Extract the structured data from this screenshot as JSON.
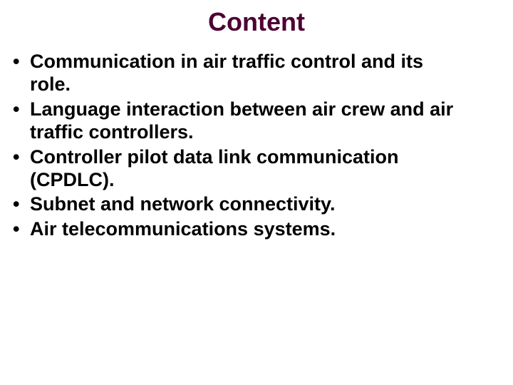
{
  "slide": {
    "title": "Content",
    "title_color": "#4d0033",
    "title_fontsize": 36,
    "body_fontsize": 27,
    "body_color": "#000000",
    "background_color": "#ffffff",
    "items": [
      {
        "line1": "Communication in air traffic control and its",
        "line2": "role."
      },
      {
        "line1": "Language interaction between air crew and air",
        "line2": "traffic controllers."
      },
      {
        "line1": "Controller pilot data link communication",
        "line2": "(CPDLC)."
      },
      {
        "line1": "Subnet and network connectivity.",
        "line2": ""
      },
      {
        "line1": "Air telecommunications systems.",
        "line2": ""
      }
    ]
  }
}
